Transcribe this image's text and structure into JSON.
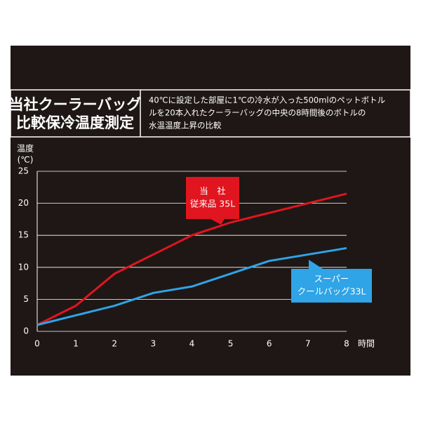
{
  "chart_data": {
    "type": "line",
    "title_lines": [
      "当社クーラーバッグ",
      "比較保冷温度測定"
    ],
    "description_lines": [
      "40℃に設定した部屋に1℃の冷水が入った500mlのペットボトル",
      "ルを20本入れたクーラーバッグの中央の8時間後のボトルの",
      "水温温度上昇の比較"
    ],
    "y_label_lines": [
      "温度",
      "(℃)"
    ],
    "x_label": "時間",
    "x": [
      0,
      1,
      2,
      3,
      4,
      5,
      6,
      7,
      8
    ],
    "series": [
      {
        "label_lines": [
          "当　社",
          "従来品 35L"
        ],
        "color": "#e0151f",
        "values": [
          1,
          4,
          9,
          12,
          15,
          17,
          18.5,
          20,
          21.5
        ]
      },
      {
        "label_lines": [
          "スーパー",
          "クールバッグ33L"
        ],
        "color": "#2fa4e7",
        "values": [
          1,
          2.5,
          4,
          6,
          7,
          9,
          11,
          12,
          13
        ]
      }
    ],
    "xlim": [
      0,
      8
    ],
    "xticks": [
      0,
      1,
      2,
      3,
      4,
      5,
      6,
      7,
      8
    ],
    "ylim": [
      0,
      25
    ],
    "yticks": [
      0,
      5,
      10,
      15,
      20,
      25
    ],
    "grid": true
  }
}
